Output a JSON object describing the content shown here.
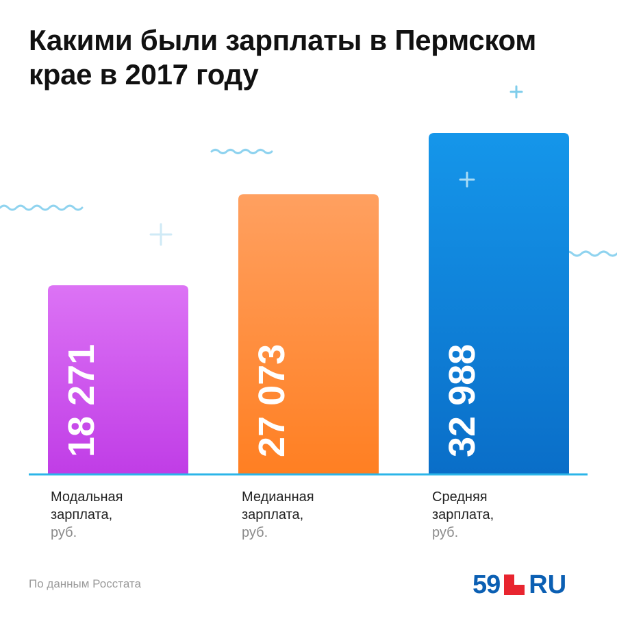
{
  "title": "Какими были зарплаты в Пермском крае в 2017 году",
  "source": "По данным Росстата",
  "logo": {
    "number": "59",
    "suffix": "RU"
  },
  "colors": {
    "brand": "#0b5fb3",
    "logo_red": "#e8252f",
    "baseline": "#2bb5e8",
    "decor": "#8fd3ef"
  },
  "chart_data": {
    "type": "bar",
    "categories": [
      "Модальная зарплата, руб.",
      "Медианная зарплата, руб.",
      "Средняя зарплата, руб."
    ],
    "values": [
      18271,
      27073,
      32988
    ],
    "value_labels": [
      "18 271",
      "27 073",
      "32 988"
    ],
    "bar_colors": [
      [
        "#dc73f5",
        "#c03de6"
      ],
      [
        "#ffa060",
        "#ff7f22"
      ],
      [
        "#1596ea",
        "#0a6ec8"
      ]
    ],
    "title": "Какими были зарплаты в Пермском крае в 2017 году",
    "ylim": [
      0,
      40000
    ],
    "grid": false
  },
  "labels": [
    {
      "line1": "Модальная",
      "line2": "зарплата,",
      "unit": "руб."
    },
    {
      "line1": "Медианная",
      "line2": "зарплата,",
      "unit": "руб."
    },
    {
      "line1": "Средняя",
      "line2": "зарплата,",
      "unit": "руб."
    }
  ]
}
